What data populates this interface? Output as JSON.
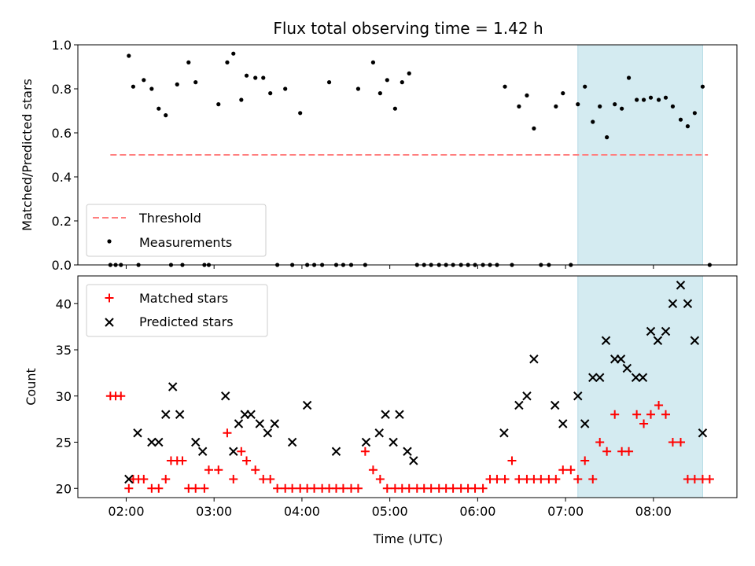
{
  "title": "Flux total observing time = 1.42 h",
  "colors": {
    "threshold": "#ff7f7f",
    "measurement": "#000000",
    "matched": "#ff0000",
    "predicted": "#000000",
    "highlight": "#d4ebf1"
  },
  "chart_data": [
    {
      "type": "scatter",
      "ylabel": "Matched/Predicted stars",
      "xlabel": "",
      "xlim": [
        1.45,
        8.95
      ],
      "ylim": [
        0.0,
        1.0
      ],
      "xticks": [
        2,
        3,
        4,
        5,
        6,
        7,
        8
      ],
      "xtick_labels": [
        "02:00",
        "03:00",
        "04:00",
        "05:00",
        "06:00",
        "07:00",
        "08:00"
      ],
      "yticks": [
        0.0,
        0.2,
        0.4,
        0.6,
        0.8,
        1.0
      ],
      "ytick_labels": [
        "0.0",
        "0.2",
        "0.4",
        "0.6",
        "0.8",
        "1.0"
      ],
      "highlight_span": [
        7.14,
        8.56
      ],
      "legend": {
        "position": "lower-left",
        "entries": [
          "Threshold",
          "Measurements"
        ]
      },
      "threshold": {
        "name": "Threshold",
        "y": 0.5,
        "x": [
          1.82,
          8.62
        ]
      },
      "series": [
        {
          "name": "Measurements",
          "x": [
            1.82,
            1.88,
            1.94,
            2.03,
            2.08,
            2.14,
            2.2,
            2.29,
            2.37,
            2.45,
            2.51,
            2.58,
            2.64,
            2.71,
            2.79,
            2.89,
            2.94,
            3.05,
            3.15,
            3.22,
            3.31,
            3.37,
            3.47,
            3.56,
            3.64,
            3.72,
            3.81,
            3.89,
            3.98,
            4.06,
            4.14,
            4.23,
            4.31,
            4.39,
            4.47,
            4.56,
            4.64,
            4.72,
            4.81,
            4.89,
            4.97,
            5.06,
            5.14,
            5.22,
            5.31,
            5.39,
            5.47,
            5.56,
            5.64,
            5.72,
            5.81,
            5.89,
            5.97,
            6.06,
            6.14,
            6.22,
            6.31,
            6.39,
            6.47,
            6.56,
            6.64,
            6.72,
            6.81,
            6.89,
            6.97,
            7.06,
            7.14,
            7.22,
            7.31,
            7.39,
            7.47,
            7.56,
            7.64,
            7.72,
            7.81,
            7.89,
            7.97,
            8.06,
            8.14,
            8.22,
            8.31,
            8.39,
            8.47,
            8.56,
            8.64
          ],
          "y": [
            0,
            0,
            0,
            0.95,
            0.81,
            0,
            0.84,
            0.8,
            0.71,
            0.68,
            0,
            0.82,
            0,
            0.92,
            0.83,
            0,
            0,
            0.73,
            0.92,
            0.96,
            0.75,
            0.86,
            0.85,
            0.85,
            0.78,
            0,
            0.8,
            0,
            0.69,
            0,
            0,
            0,
            0.83,
            0,
            0,
            0,
            0.8,
            0,
            0.92,
            0.78,
            0.84,
            0.71,
            0.83,
            0.87,
            0,
            0,
            0,
            0,
            0,
            0,
            0,
            0,
            0,
            0,
            0,
            0,
            0.81,
            0,
            0.72,
            0.77,
            0.62,
            0,
            0,
            0.72,
            0.78,
            0,
            0.73,
            0.81,
            0.65,
            0.72,
            0.58,
            0.73,
            0.71,
            0.85,
            0.75,
            0.75,
            0.76,
            0.75,
            0.76,
            0.72,
            0.66,
            0.63,
            0.69,
            0.81,
            0
          ]
        }
      ]
    },
    {
      "type": "scatter",
      "ylabel": "Count",
      "xlabel": "Time (UTC)",
      "xlim": [
        1.45,
        8.95
      ],
      "ylim": [
        19.0,
        43.0
      ],
      "xticks": [
        2,
        3,
        4,
        5,
        6,
        7,
        8
      ],
      "xtick_labels": [
        "02:00",
        "03:00",
        "04:00",
        "05:00",
        "06:00",
        "07:00",
        "08:00"
      ],
      "yticks": [
        20,
        25,
        30,
        35,
        40
      ],
      "ytick_labels": [
        "20",
        "25",
        "30",
        "35",
        "40"
      ],
      "highlight_span": [
        7.14,
        8.56
      ],
      "legend": {
        "position": "upper-left",
        "entries": [
          "Matched stars",
          "Predicted stars"
        ]
      },
      "series": [
        {
          "name": "Matched stars",
          "marker": "plus",
          "x": [
            1.82,
            1.88,
            1.94,
            2.03,
            2.08,
            2.14,
            2.2,
            2.29,
            2.37,
            2.45,
            2.51,
            2.58,
            2.64,
            2.71,
            2.79,
            2.89,
            2.94,
            3.05,
            3.15,
            3.22,
            3.31,
            3.37,
            3.47,
            3.56,
            3.64,
            3.72,
            3.81,
            3.89,
            3.98,
            4.06,
            4.14,
            4.23,
            4.31,
            4.39,
            4.47,
            4.56,
            4.64,
            4.72,
            4.81,
            4.89,
            4.97,
            5.06,
            5.14,
            5.22,
            5.31,
            5.39,
            5.47,
            5.56,
            5.64,
            5.72,
            5.81,
            5.89,
            5.97,
            6.06,
            6.14,
            6.22,
            6.31,
            6.39,
            6.47,
            6.56,
            6.64,
            6.72,
            6.81,
            6.89,
            6.97,
            7.06,
            7.14,
            7.22,
            7.31,
            7.39,
            7.47,
            7.56,
            7.64,
            7.72,
            7.81,
            7.89,
            7.97,
            8.06,
            8.14,
            8.22,
            8.31,
            8.39,
            8.47,
            8.56,
            8.64
          ],
          "y": [
            30,
            30,
            30,
            20,
            21,
            21,
            21,
            20,
            20,
            21,
            23,
            23,
            23,
            20,
            20,
            20,
            22,
            22,
            26,
            21,
            24,
            23,
            22,
            21,
            21,
            20,
            20,
            20,
            20,
            20,
            20,
            20,
            20,
            20,
            20,
            20,
            20,
            24,
            22,
            21,
            20,
            20,
            20,
            20,
            20,
            20,
            20,
            20,
            20,
            20,
            20,
            20,
            20,
            20,
            21,
            21,
            21,
            23,
            21,
            21,
            21,
            21,
            21,
            21,
            22,
            22,
            21,
            23,
            21,
            25,
            24,
            28,
            24,
            24,
            28,
            27,
            28,
            29,
            28,
            25,
            25,
            21,
            21,
            21,
            21
          ]
        },
        {
          "name": "Predicted stars",
          "marker": "x",
          "x": [
            2.03,
            2.13,
            2.29,
            2.37,
            2.45,
            2.53,
            2.61,
            2.79,
            2.87,
            3.13,
            3.22,
            3.28,
            3.35,
            3.42,
            3.52,
            3.61,
            3.69,
            3.89,
            4.06,
            4.39,
            4.73,
            4.88,
            4.95,
            5.04,
            5.11,
            5.2,
            5.27,
            6.3,
            6.47,
            6.56,
            6.64,
            6.88,
            6.97,
            7.14,
            7.22,
            7.31,
            7.39,
            7.46,
            7.56,
            7.63,
            7.7,
            7.8,
            7.88,
            7.97,
            8.05,
            8.14,
            8.22,
            8.31,
            8.39,
            8.47,
            8.56
          ],
          "y": [
            21,
            26,
            25,
            25,
            28,
            31,
            28,
            25,
            24,
            30,
            24,
            27,
            28,
            28,
            27,
            26,
            27,
            25,
            29,
            24,
            25,
            26,
            28,
            25,
            28,
            24,
            23,
            26,
            29,
            30,
            34,
            29,
            27,
            30,
            27,
            32,
            32,
            36,
            34,
            34,
            33,
            32,
            32,
            37,
            36,
            37,
            40,
            42,
            40,
            36,
            26
          ]
        }
      ]
    }
  ]
}
